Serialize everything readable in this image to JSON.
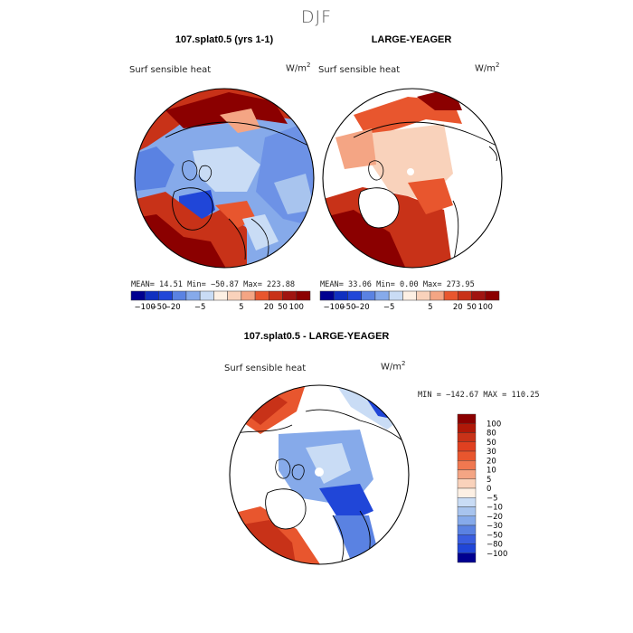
{
  "page": {
    "title": "DJF"
  },
  "panels": [
    {
      "title": "107.splat0.5 (yrs 1-1)",
      "variable": "Surf sensible heat",
      "unit": "W/m",
      "unit_sup": "2",
      "stats": "MEAN=  14.51  Min= −50.87  Max= 223.88"
    },
    {
      "title": "LARGE-YEAGER",
      "variable": "Surf sensible heat",
      "unit": "W/m",
      "unit_sup": "2",
      "stats": "MEAN=  33.06  Min=   0.00  Max= 273.95"
    },
    {
      "title": "107.splat0.5 - LARGE-YEAGER",
      "variable": "Surf sensible heat",
      "unit": "W/m",
      "unit_sup": "2",
      "stats": "MIN = −142.67 MAX = 110.25"
    }
  ],
  "colors": {
    "deep_red": "#8b0000",
    "red": "#c83218",
    "orange_red": "#e8562e",
    "salmon": "#f4a584",
    "light_salmon": "#f9d2bb",
    "cream": "#fdf0e4",
    "light_blue": "#c9dcf5",
    "blue": "#86aaea",
    "mid_blue": "#5a82e2",
    "strong_blue": "#2046d8",
    "navy": "#000090"
  },
  "chart_data": [
    {
      "type": "heatmap",
      "title": "107.splat0.5 (yrs 1-1)",
      "variable": "Surf sensible heat",
      "units": "W/m2",
      "mean": 14.51,
      "min": -50.87,
      "max": 223.88,
      "colorbar": {
        "ticks": [
          "−100",
          "−50",
          "−20",
          "−5",
          "5",
          "20",
          "50",
          "100"
        ],
        "colors": [
          "#000090",
          "#1030c0",
          "#2046d8",
          "#5a82e2",
          "#86aaea",
          "#c9dcf5",
          "#fdf0e4",
          "#f9d2bb",
          "#f4a584",
          "#e8562e",
          "#c83218",
          "#a01410",
          "#8b0000"
        ]
      }
    },
    {
      "type": "heatmap",
      "title": "LARGE-YEAGER",
      "variable": "Surf sensible heat",
      "units": "W/m2",
      "mean": 33.06,
      "min": 0.0,
      "max": 273.95,
      "colorbar": {
        "ticks": [
          "−100",
          "−50",
          "−20",
          "−5",
          "5",
          "20",
          "50",
          "100"
        ],
        "colors": [
          "#000090",
          "#1030c0",
          "#2046d8",
          "#5a82e2",
          "#86aaea",
          "#c9dcf5",
          "#fdf0e4",
          "#f9d2bb",
          "#f4a584",
          "#e8562e",
          "#c83218",
          "#a01410",
          "#8b0000"
        ]
      }
    },
    {
      "type": "heatmap",
      "title": "107.splat0.5 - LARGE-YEAGER",
      "variable": "Surf sensible heat",
      "units": "W/m2",
      "min": -142.67,
      "max": 110.25,
      "colorbar": {
        "ticks": [
          "100",
          "80",
          "50",
          "30",
          "20",
          "10",
          "5",
          "0",
          "−5",
          "−10",
          "−20",
          "−30",
          "−50",
          "−80",
          "−100"
        ],
        "colors": [
          "#8b0000",
          "#b01808",
          "#c83218",
          "#e04020",
          "#e8562e",
          "#f07850",
          "#f4a584",
          "#f9d2bb",
          "#fdf0e4",
          "#c9dcf5",
          "#a8c4ee",
          "#86aaea",
          "#5a82e2",
          "#3a5ee0",
          "#2046d8",
          "#000090"
        ]
      }
    }
  ]
}
